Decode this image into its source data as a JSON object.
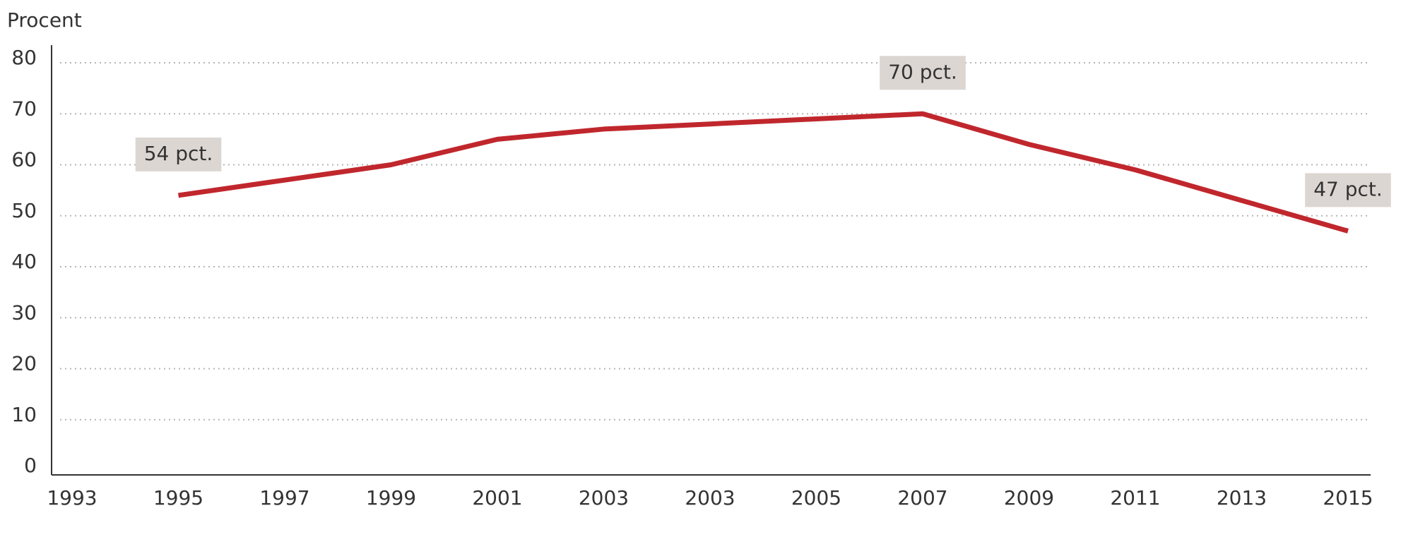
{
  "chart_data": {
    "type": "line",
    "y_label": "Procent",
    "categories": [
      "1993",
      "1995",
      "1997",
      "1999",
      "2001",
      "2003",
      "2003",
      "2005",
      "2007",
      "2009",
      "2011",
      "2013",
      "2015"
    ],
    "series": [
      {
        "color": "#c0272d",
        "values": [
          null,
          54,
          57,
          60,
          65,
          67,
          68,
          69,
          70,
          64,
          59,
          53,
          47
        ],
        "value_labels": [
          null,
          "54 pct.",
          null,
          null,
          null,
          null,
          null,
          null,
          "70 pct.",
          null,
          null,
          null,
          "47 pct."
        ]
      }
    ],
    "ylim": [
      0,
      80
    ],
    "yticks": [
      0,
      10,
      20,
      30,
      40,
      50,
      60,
      70,
      80
    ],
    "grid": true
  }
}
